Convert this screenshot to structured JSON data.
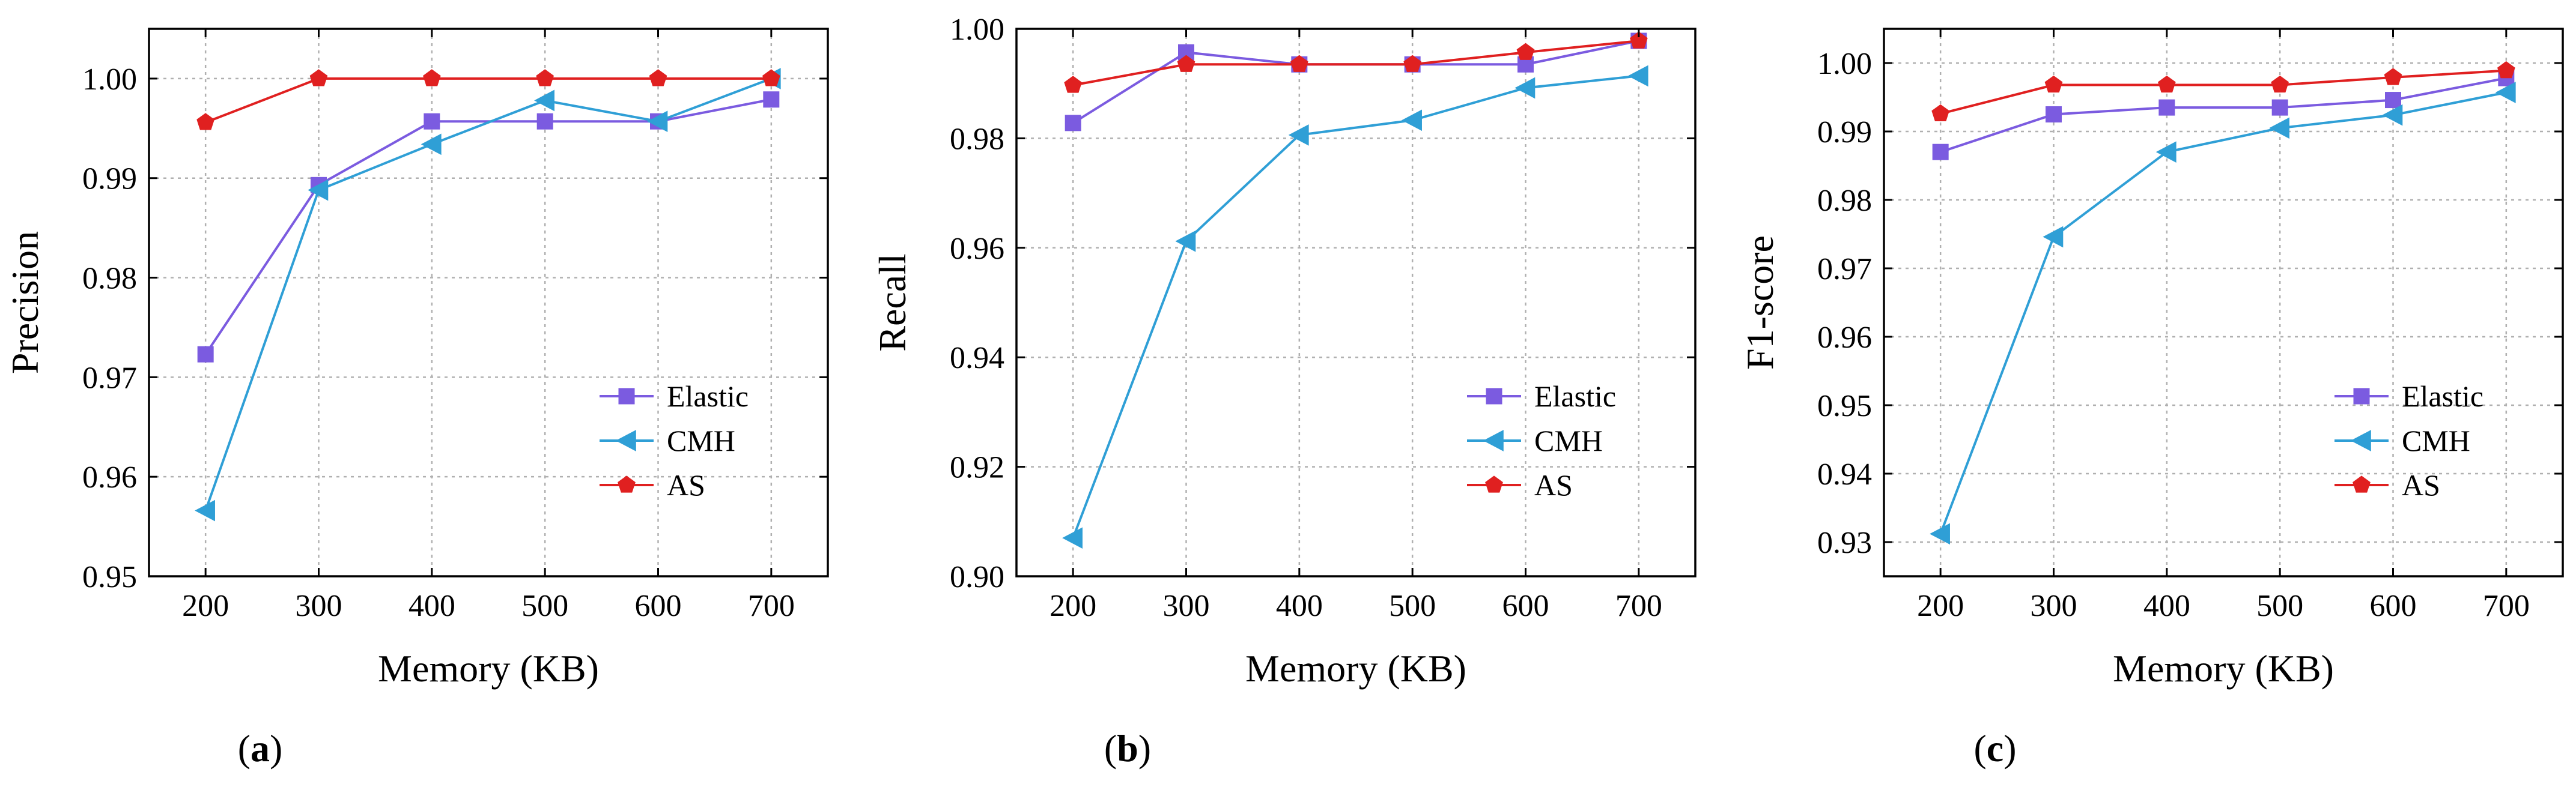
{
  "chart_data": [
    {
      "type": "line",
      "panel_label": "(a)",
      "panel_letter": "a",
      "xlabel": "Memory (KB)",
      "ylabel": "Precision",
      "x": [
        200,
        300,
        400,
        500,
        600,
        700
      ],
      "xlim": [
        150,
        750
      ],
      "ylim": [
        0.95,
        1.005
      ],
      "yticks": [
        0.95,
        0.96,
        0.97,
        0.98,
        0.99,
        1.0
      ],
      "ytick_labels": [
        "0.95",
        "0.96",
        "0.97",
        "0.98",
        "0.99",
        "1.00"
      ],
      "legend_position": "lower-right",
      "series": [
        {
          "name": "Elastic",
          "color": "#7B5BE0",
          "marker": "square",
          "values": [
            0.9723,
            0.9893,
            0.9957,
            0.9957,
            0.9957,
            0.9979
          ]
        },
        {
          "name": "CMH",
          "color": "#2F9FD6",
          "marker": "triangle-left",
          "values": [
            0.9566,
            0.9888,
            0.9934,
            0.9978,
            0.9957,
            1.0
          ]
        },
        {
          "name": "AS",
          "color": "#E02020",
          "marker": "pentagon",
          "values": [
            0.9956,
            1.0,
            1.0,
            1.0,
            1.0,
            1.0
          ]
        }
      ]
    },
    {
      "type": "line",
      "panel_label": "(b)",
      "panel_letter": "b",
      "xlabel": "Memory (KB)",
      "ylabel": "Recall",
      "x": [
        200,
        300,
        400,
        500,
        600,
        700
      ],
      "xlim": [
        150,
        750
      ],
      "ylim": [
        0.9,
        1.0
      ],
      "yticks": [
        0.9,
        0.92,
        0.94,
        0.96,
        0.98,
        1.0
      ],
      "ytick_labels": [
        "0.90",
        "0.92",
        "0.94",
        "0.96",
        "0.98",
        "1.00"
      ],
      "legend_position": "lower-right",
      "series": [
        {
          "name": "Elastic",
          "color": "#7B5BE0",
          "marker": "square",
          "values": [
            0.9828,
            0.9957,
            0.9935,
            0.9935,
            0.9935,
            0.9978
          ]
        },
        {
          "name": "CMH",
          "color": "#2F9FD6",
          "marker": "triangle-left",
          "values": [
            0.907,
            0.9612,
            0.9806,
            0.9833,
            0.9892,
            0.9914
          ]
        },
        {
          "name": "AS",
          "color": "#E02020",
          "marker": "pentagon",
          "values": [
            0.9897,
            0.9935,
            0.9935,
            0.9935,
            0.9957,
            0.9978
          ]
        }
      ]
    },
    {
      "type": "line",
      "panel_label": "(c)",
      "panel_letter": "c",
      "xlabel": "Memory (KB)",
      "ylabel": "F1-score",
      "x": [
        200,
        300,
        400,
        500,
        600,
        700
      ],
      "xlim": [
        150,
        750
      ],
      "ylim": [
        0.925,
        1.005
      ],
      "yticks": [
        0.93,
        0.94,
        0.95,
        0.96,
        0.97,
        0.98,
        0.99,
        1.0
      ],
      "ytick_labels": [
        "0.93",
        "0.94",
        "0.95",
        "0.96",
        "0.97",
        "0.98",
        "0.99",
        "1.00"
      ],
      "legend_position": "lower-right",
      "series": [
        {
          "name": "Elastic",
          "color": "#7B5BE0",
          "marker": "square",
          "values": [
            0.987,
            0.9925,
            0.9935,
            0.9935,
            0.9946,
            0.9978
          ]
        },
        {
          "name": "CMH",
          "color": "#2F9FD6",
          "marker": "triangle-left",
          "values": [
            0.9312,
            0.9746,
            0.987,
            0.9905,
            0.9924,
            0.9957
          ]
        },
        {
          "name": "AS",
          "color": "#E02020",
          "marker": "pentagon",
          "values": [
            0.9926,
            0.9968,
            0.9968,
            0.9968,
            0.9979,
            0.9989
          ]
        }
      ]
    }
  ]
}
